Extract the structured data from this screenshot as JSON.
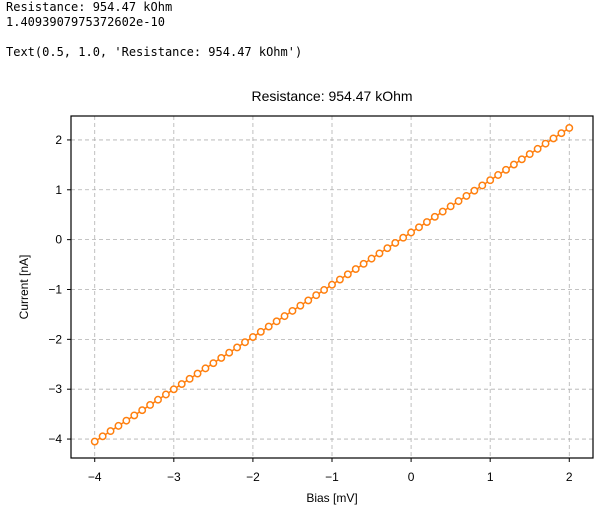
{
  "output": {
    "line1": "Resistance: 954.47 kOhm",
    "line2": "1.4093907975372602e-10",
    "line3": "Text(0.5, 1.0, 'Resistance: 954.47 kOhm')"
  },
  "colors": {
    "series": "#ff7f0e",
    "grid": "#b0b0b0",
    "axis": "#000000"
  },
  "chart_data": {
    "type": "scatter",
    "title": "Resistance: 954.47 kOhm",
    "xlabel": "Bias [mV]",
    "ylabel": "Current [nA]",
    "xlim": [
      -4.3,
      2.3
    ],
    "ylim": [
      -4.38,
      2.48
    ],
    "xticks": [
      -4,
      -3,
      -2,
      -1,
      0,
      1,
      2
    ],
    "yticks": [
      -4,
      -3,
      -2,
      -1,
      0,
      1,
      2
    ],
    "xtick_labels": [
      "−4",
      "−3",
      "−2",
      "−1",
      "0",
      "1",
      "2"
    ],
    "ytick_labels": [
      "−4",
      "−3",
      "−2",
      "−1",
      "0",
      "1",
      "2"
    ],
    "grid": true,
    "grid_style": "dashed",
    "marker": "open-circle",
    "series": [
      {
        "x_start": -4.0,
        "x_end": 2.0,
        "count": 61,
        "y_start": -4.05,
        "y_end": 2.24
      }
    ]
  }
}
